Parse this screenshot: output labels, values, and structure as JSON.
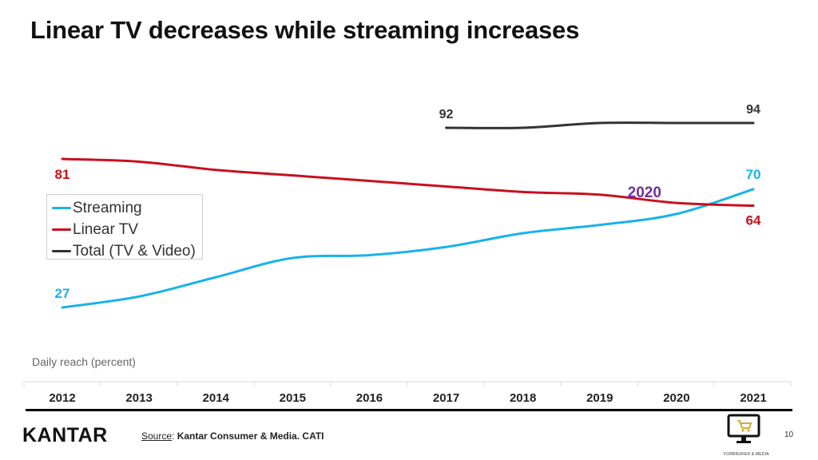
{
  "title": "Linear TV decreases while streaming increases",
  "chart_data": {
    "type": "line",
    "x": [
      2012,
      2013,
      2014,
      2015,
      2016,
      2017,
      2018,
      2019,
      2020,
      2021
    ],
    "categories": [
      "2012",
      "2013",
      "2014",
      "2015",
      "2016",
      "2017",
      "2018",
      "2019",
      "2020",
      "2021"
    ],
    "series": [
      {
        "name": "Streaming",
        "color": "#1ab2e8",
        "values": [
          27,
          31,
          38,
          45,
          46,
          49,
          54,
          57,
          61,
          70
        ]
      },
      {
        "name": "Linear TV",
        "color": "#c8101e",
        "values": [
          81,
          80,
          77,
          75,
          73,
          71,
          69,
          68,
          65,
          64
        ]
      },
      {
        "name": "Total (TV & Video)",
        "color": "#333333",
        "values": [
          null,
          null,
          null,
          null,
          null,
          92,
          92,
          94,
          94,
          94
        ]
      }
    ],
    "data_labels": [
      {
        "series": "Linear TV",
        "x": 2012,
        "text": "81"
      },
      {
        "series": "Streaming",
        "x": 2012,
        "text": "27"
      },
      {
        "series": "Total (TV & Video)",
        "x": 2017,
        "text": "92"
      },
      {
        "series": "Total (TV & Video)",
        "x": 2021,
        "text": "94"
      },
      {
        "series": "Streaming",
        "x": 2021,
        "text": "70"
      },
      {
        "series": "Linear TV",
        "x": 2021,
        "text": "64"
      }
    ],
    "annotation": {
      "text": "2020",
      "color": "#7030a0"
    },
    "ylabel": "Daily reach (percent)",
    "xlabel": "",
    "grid": false,
    "legend_position": "left"
  },
  "legend": [
    {
      "label": "Streaming",
      "color": "#1ab2e8"
    },
    {
      "label": "Linear TV",
      "color": "#c8101e"
    },
    {
      "label": "Total (TV & Video)",
      "color": "#333333"
    }
  ],
  "footer": {
    "logo": "KANTAR",
    "source_label": "Source",
    "source_text": "Kantar Consumer & Media. CATI",
    "page": "10",
    "icon_caption": "FORBRUKER & MEDIA"
  }
}
